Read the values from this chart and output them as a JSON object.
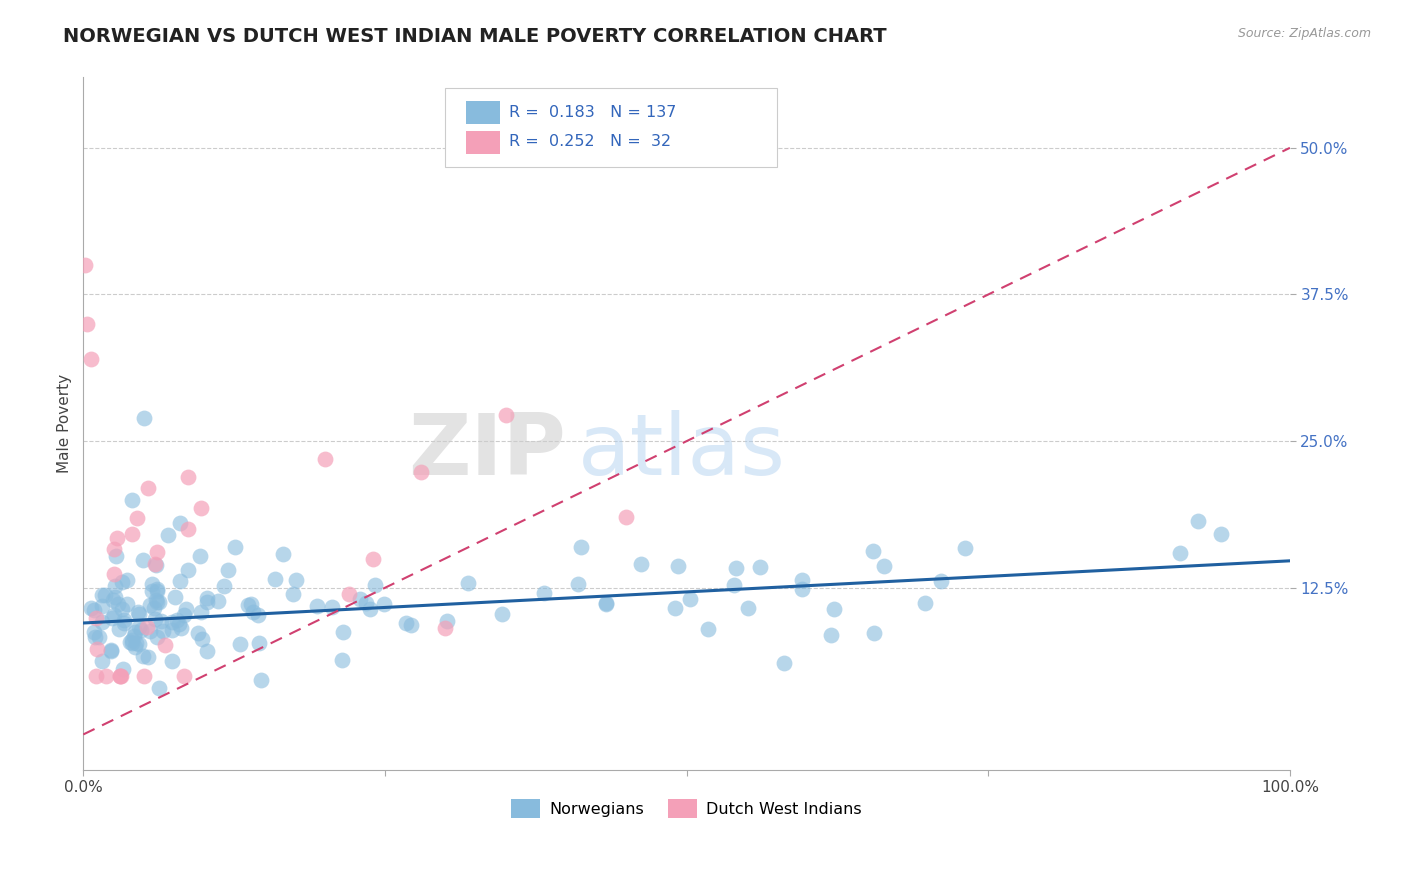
{
  "title": "NORWEGIAN VS DUTCH WEST INDIAN MALE POVERTY CORRELATION CHART",
  "source": "Source: ZipAtlas.com",
  "ylabel": "Male Poverty",
  "xlim": [
    0.0,
    1.0
  ],
  "ylim": [
    -0.03,
    0.56
  ],
  "yticks": [
    0.125,
    0.25,
    0.375,
    0.5
  ],
  "ytick_labels": [
    "12.5%",
    "25.0%",
    "37.5%",
    "50.0%"
  ],
  "xticks": [
    0.0,
    0.25,
    0.5,
    0.75,
    1.0
  ],
  "xtick_labels": [
    "0.0%",
    "",
    "",
    "",
    "100.0%"
  ],
  "norwegian_color": "#88bbdd",
  "dutch_color": "#f4a0b8",
  "norwegian_line_color": "#2060a0",
  "dutch_line_color": "#d04070",
  "background_color": "#ffffff",
  "grid_color": "#cccccc",
  "title_fontsize": 14,
  "axis_label_fontsize": 11,
  "tick_label_fontsize": 11,
  "legend_R_norwegian": "0.183",
  "legend_N_norwegian": "137",
  "legend_R_dutch": "0.252",
  "legend_N_dutch": " 32",
  "watermark_zip": "ZIP",
  "watermark_atlas": "atlas",
  "norwegian_line_x0": 0.0,
  "norwegian_line_y0": 0.095,
  "norwegian_line_x1": 1.0,
  "norwegian_line_y1": 0.148,
  "dutch_line_x0": 0.0,
  "dutch_line_y0": 0.0,
  "dutch_line_x1": 1.0,
  "dutch_line_y1": 0.5
}
